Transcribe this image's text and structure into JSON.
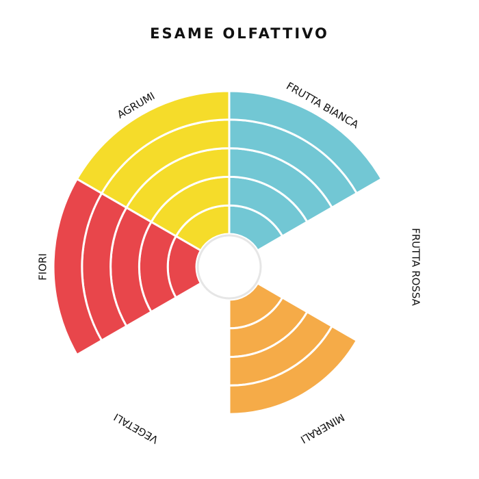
{
  "chart_data": {
    "type": "radial",
    "title": "ESAME OLFATTIVO",
    "categories": [
      "FRUTTA BIANCA",
      "FRUTTA ROSSA",
      "MINERALI",
      "VEGETALI",
      "FIORI",
      "AGRUMI"
    ],
    "values": [
      5,
      0,
      4,
      0,
      5,
      5
    ],
    "colors": [
      "#72c7d4",
      "#f5ab48",
      "#f5ab48",
      "#8bc34a",
      "#e8464b",
      "#f5dc2a"
    ],
    "rlim": [
      0,
      5
    ]
  }
}
